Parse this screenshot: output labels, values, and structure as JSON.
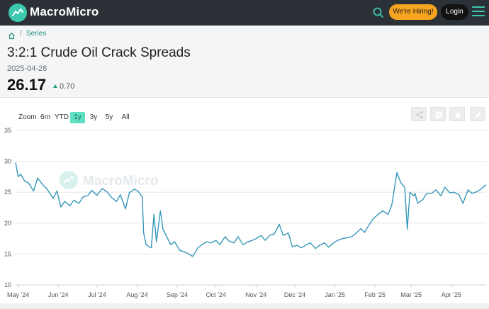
{
  "brand": {
    "name": "MacroMicro",
    "accent": "#3cc9b0"
  },
  "topbar": {
    "icons": [
      "search-icon",
      "menu-icon"
    ],
    "hiring_label": "We're Hiring!",
    "login_label": "Login"
  },
  "breadcrumb": {
    "icons": [
      "home-icon"
    ],
    "separator": "/",
    "series_label": "Series"
  },
  "header": {
    "title": "3:2:1 Crude Oil Crack Spreads",
    "date": "2025-04-28",
    "value": "26.17",
    "change": "0.70",
    "change_color": "#22a37f"
  },
  "range_selector": {
    "zoom_label": "Zoom",
    "options": [
      "6m",
      "YTD",
      "1y",
      "3y",
      "5y",
      "All"
    ],
    "selected": "1y"
  },
  "toolbar_icons": [
    "share-icon",
    "settings-icon",
    "alert-icon",
    "edit-icon"
  ],
  "chart_data": {
    "type": "line",
    "title": "",
    "xlabel": "",
    "ylabel": "",
    "ylim": [
      10,
      35
    ],
    "yticks": [
      10,
      15,
      20,
      25,
      30,
      35
    ],
    "x_tick_labels": [
      "May '24",
      "Jun '24",
      "Jul '24",
      "Aug '24",
      "Sep '24",
      "Oct '24",
      "Nov '24",
      "Dec '24",
      "Jan '25",
      "Feb '25",
      "Mar '25",
      "Apr '25"
    ],
    "grid": true,
    "watermark": "MacroMicro",
    "line_color": "#3597b8",
    "series": [
      {
        "x": [
          "2024-04-29",
          "2024-05-01",
          "2024-05-03",
          "2024-05-06",
          "2024-05-09",
          "2024-05-13",
          "2024-05-16",
          "2024-05-20",
          "2024-05-23",
          "2024-05-28",
          "2024-05-31",
          "2024-06-03",
          "2024-06-06",
          "2024-06-10",
          "2024-06-13",
          "2024-06-17",
          "2024-06-20",
          "2024-06-24",
          "2024-06-27",
          "2024-07-01",
          "2024-07-05",
          "2024-07-09",
          "2024-07-12",
          "2024-07-16",
          "2024-07-19",
          "2024-07-23",
          "2024-07-26",
          "2024-07-30",
          "2024-08-02",
          "2024-08-05",
          "2024-08-06",
          "2024-08-08",
          "2024-08-12",
          "2024-08-14",
          "2024-08-16",
          "2024-08-19",
          "2024-08-21",
          "2024-08-23",
          "2024-08-27",
          "2024-08-30",
          "2024-09-03",
          "2024-09-06",
          "2024-09-10",
          "2024-09-13",
          "2024-09-17",
          "2024-09-20",
          "2024-09-24",
          "2024-09-27",
          "2024-10-01",
          "2024-10-04",
          "2024-10-08",
          "2024-10-11",
          "2024-10-15",
          "2024-10-18",
          "2024-10-22",
          "2024-10-25",
          "2024-10-29",
          "2024-11-01",
          "2024-11-05",
          "2024-11-08",
          "2024-11-12",
          "2024-11-15",
          "2024-11-19",
          "2024-11-22",
          "2024-11-26",
          "2024-11-29",
          "2024-12-03",
          "2024-12-06",
          "2024-12-10",
          "2024-12-13",
          "2024-12-17",
          "2024-12-20",
          "2024-12-24",
          "2024-12-27",
          "2024-12-31",
          "2025-01-03",
          "2025-01-07",
          "2025-01-10",
          "2025-01-14",
          "2025-01-17",
          "2025-01-21",
          "2025-01-24",
          "2025-01-28",
          "2025-01-31",
          "2025-02-04",
          "2025-02-07",
          "2025-02-11",
          "2025-02-14",
          "2025-02-18",
          "2025-02-21",
          "2025-02-24",
          "2025-02-26",
          "2025-02-28",
          "2025-03-03",
          "2025-03-04",
          "2025-03-06",
          "2025-03-10",
          "2025-03-13",
          "2025-03-17",
          "2025-03-20",
          "2025-03-24",
          "2025-03-27",
          "2025-03-31",
          "2025-04-03",
          "2025-04-07",
          "2025-04-10",
          "2025-04-14",
          "2025-04-17",
          "2025-04-21",
          "2025-04-24",
          "2025-04-28"
        ],
        "values": [
          29.8,
          27.5,
          27.9,
          26.8,
          26.5,
          25.2,
          27.3,
          26.2,
          25.6,
          24.0,
          25.2,
          22.6,
          23.5,
          22.8,
          23.7,
          23.2,
          24.2,
          24.5,
          25.3,
          24.5,
          25.6,
          25.0,
          24.2,
          23.5,
          24.6,
          22.3,
          24.9,
          25.5,
          25.1,
          24.2,
          18.5,
          16.5,
          16.0,
          21.4,
          17.0,
          22.0,
          19.0,
          18.2,
          16.5,
          17.0,
          15.6,
          15.4,
          15.0,
          14.6,
          16.0,
          16.5,
          17.0,
          16.8,
          17.2,
          16.5,
          17.8,
          17.1,
          16.8,
          17.8,
          16.5,
          16.9,
          17.2,
          17.5,
          18.0,
          17.2,
          18.1,
          18.2,
          19.8,
          18.0,
          18.4,
          16.2,
          16.4,
          16.0,
          16.5,
          16.8,
          15.9,
          16.4,
          16.8,
          16.1,
          16.8,
          17.2,
          17.5,
          17.6,
          17.8,
          18.3,
          19.1,
          18.5,
          19.9,
          20.8,
          21.5,
          22.0,
          21.4,
          22.9,
          28.2,
          26.5,
          25.8,
          19.0,
          25.0,
          24.4,
          24.8,
          23.2,
          23.8,
          24.8,
          24.8,
          25.4,
          24.4,
          25.8,
          24.9,
          25.0,
          24.6,
          23.2,
          25.4,
          24.8,
          25.1,
          25.5,
          26.2
        ]
      }
    ]
  }
}
